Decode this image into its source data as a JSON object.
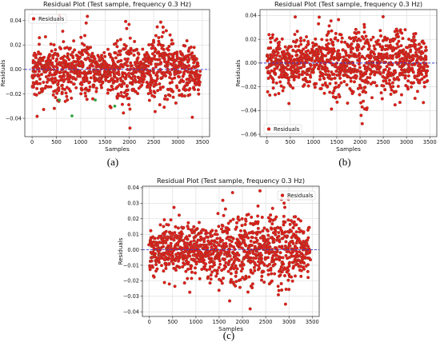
{
  "figure": {
    "panels": [
      "(a)",
      "(b)",
      "(c)"
    ]
  },
  "chart_data": [
    {
      "panel": "(a)",
      "type": "scatter",
      "title": "Residual Plot (Test sample, frequency 0.3 Hz)",
      "xlabel": "Samples",
      "ylabel": "Residuals",
      "xlim": [
        -150,
        3650
      ],
      "ylim": [
        -0.055,
        0.049
      ],
      "xticks": [
        0,
        500,
        1000,
        1500,
        2000,
        2500,
        3000,
        3500
      ],
      "yticks": [
        -0.04,
        -0.02,
        0.0,
        0.02,
        0.04
      ],
      "ytick_labels": [
        "−0.04",
        "−0.02",
        "0.00",
        "0.02",
        "0.04"
      ],
      "grid": true,
      "legend": {
        "location": "upper-left",
        "entries": [
          "Residuals"
        ]
      },
      "reference_line": {
        "y": 0.0,
        "style": "dashed",
        "color": "#3b3bd6"
      },
      "series": [
        {
          "name": "Residuals",
          "color": "#e41a1c",
          "edge": "#8b3a1a",
          "n": 3450,
          "approx_envelope": {
            "min": -0.048,
            "max": 0.046
          },
          "segment_amplitude": [
            0.034,
            0.03,
            0.025,
            0.035,
            0.04,
            0.03,
            0.02,
            0.04,
            0.028,
            0.02,
            0.022,
            0.03,
            0.04,
            0.045,
            0.03,
            0.02,
            0.028,
            0.036,
            0.04,
            0.032,
            0.025,
            0.03,
            0.035,
            0.03
          ]
        }
      ],
      "highlight_points": [
        {
          "x": 560,
          "y": -0.025
        },
        {
          "x": 820,
          "y": -0.038
        },
        {
          "x": 1300,
          "y": -0.025
        },
        {
          "x": 1700,
          "y": -0.03
        }
      ],
      "highlight_color": "#2a9d3a"
    },
    {
      "panel": "(b)",
      "type": "scatter",
      "title": "Residual Plot (Test sample, frequency 0.3 Hz)",
      "xlabel": "Samples",
      "ylabel": "Residuals",
      "xlim": [
        -150,
        3650
      ],
      "ylim": [
        -0.062,
        0.045
      ],
      "xticks": [
        0,
        500,
        1000,
        1500,
        2000,
        2500,
        3000,
        3500
      ],
      "yticks": [
        -0.06,
        -0.04,
        -0.02,
        0.0,
        0.02,
        0.04
      ],
      "ytick_labels": [
        "−0.06",
        "−0.04",
        "−0.02",
        "0.00",
        "0.02",
        "0.04"
      ],
      "grid": true,
      "legend": {
        "location": "lower-left",
        "entries": [
          "Residuals"
        ]
      },
      "reference_line": {
        "y": 0.0,
        "style": "dashed",
        "color": "#3b3bd6"
      },
      "series": [
        {
          "name": "Residuals",
          "color": "#e41a1c",
          "edge": "#8b3a1a",
          "n": 3450,
          "approx_envelope": {
            "min": -0.058,
            "max": 0.041
          },
          "segment_amplitude": [
            0.03,
            0.028,
            0.025,
            0.03,
            0.035,
            0.03,
            0.025,
            0.035,
            0.03,
            0.045,
            0.04,
            0.03,
            0.035,
            0.045,
            0.055,
            0.03,
            0.025,
            0.035,
            0.04,
            0.045,
            0.03,
            0.028,
            0.04,
            0.03
          ]
        }
      ]
    },
    {
      "panel": "(c)",
      "type": "scatter",
      "title": "Residual Plot (Test sample, frequency 0.3 Hz)",
      "xlabel": "Samples",
      "ylabel": "Residuals",
      "xlim": [
        -150,
        3650
      ],
      "ylim": [
        -0.043,
        0.041
      ],
      "xticks": [
        0,
        500,
        1000,
        1500,
        2000,
        2500,
        3000,
        3500
      ],
      "yticks": [
        -0.04,
        -0.03,
        -0.02,
        -0.01,
        0.0,
        0.01,
        0.02,
        0.03,
        0.04
      ],
      "ytick_labels": [
        "−0.04",
        "−0.03",
        "−0.02",
        "−0.01",
        "0.00",
        "0.01",
        "0.02",
        "0.03",
        "0.04"
      ],
      "grid": true,
      "legend": {
        "location": "upper-right",
        "entries": [
          "Residuals"
        ]
      },
      "reference_line": {
        "y": 0.0,
        "style": "dashed",
        "color": "#3b3bd6"
      },
      "series": [
        {
          "name": "Residuals",
          "color": "#e41a1c",
          "edge": "#8b3a1a",
          "n": 3450,
          "approx_envelope": {
            "min": -0.04,
            "max": 0.038
          },
          "segment_amplitude": [
            0.022,
            0.02,
            0.022,
            0.025,
            0.022,
            0.02,
            0.025,
            0.022,
            0.02,
            0.022,
            0.03,
            0.025,
            0.035,
            0.03,
            0.025,
            0.035,
            0.038,
            0.025,
            0.03,
            0.035,
            0.04,
            0.03,
            0.025,
            0.022
          ]
        }
      ]
    }
  ]
}
